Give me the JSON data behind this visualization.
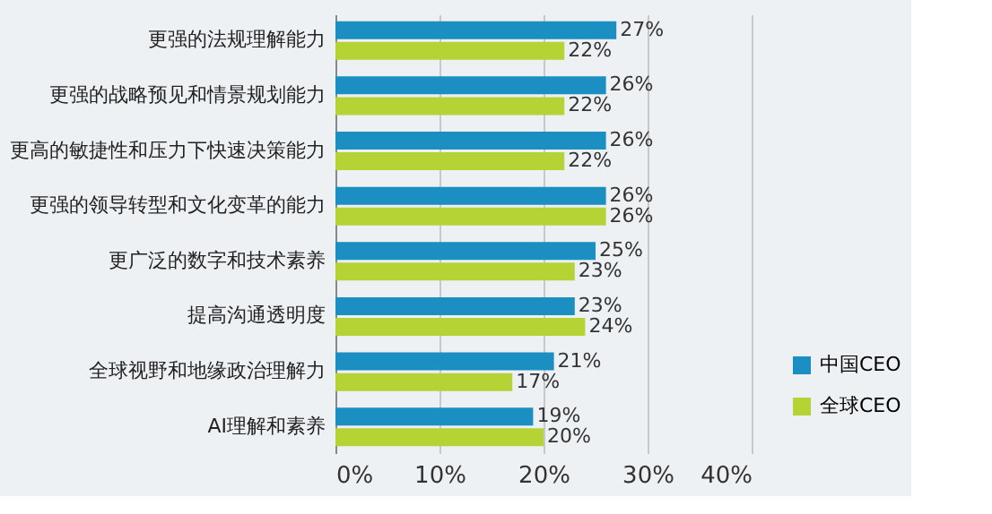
{
  "chart_data": {
    "type": "bar",
    "orientation": "horizontal",
    "categories": [
      "更强的法规理解能力",
      "更强的战略预见和情景规划能力",
      "更高的敏捷性和压力下快速决策能力",
      "更强的领导转型和文化变革的能力",
      "更广泛的数字和技术素养",
      "提高沟通透明度",
      "全球视野和地缘政治理解力",
      "AI理解和素养"
    ],
    "series": [
      {
        "name": "中国CEO",
        "color": "#1b8ec2",
        "values": [
          27,
          26,
          26,
          26,
          25,
          23,
          21,
          19
        ],
        "value_labels": [
          "27%",
          "26%",
          "26%",
          "26%",
          "25%",
          "23%",
          "21%",
          "19%"
        ]
      },
      {
        "name": "全球CEO",
        "color": "#b5d335",
        "values": [
          22,
          22,
          22,
          26,
          23,
          24,
          17,
          20
        ],
        "value_labels": [
          "22%",
          "22%",
          "22%",
          "26%",
          "23%",
          "24%",
          "17%",
          "20%"
        ]
      }
    ],
    "xlim": [
      0,
      40
    ],
    "xticks": [
      {
        "value": 0,
        "label": "0%"
      },
      {
        "value": 10,
        "label": "10%"
      },
      {
        "value": 20,
        "label": "20%"
      },
      {
        "value": 30,
        "label": "30%"
      },
      {
        "value": 40,
        "label": "40%"
      }
    ],
    "grid": "x",
    "legend": "right bottom"
  }
}
